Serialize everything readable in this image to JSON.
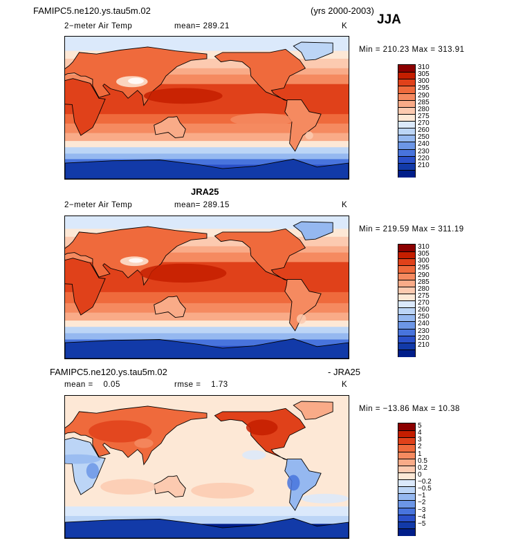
{
  "header": {
    "case_name": "FAMIPC5.ne120.ys.tau5m.02",
    "years": "(yrs 2000-2003)",
    "season": "JJA"
  },
  "panels": [
    {
      "variable": "2−meter Air Temp",
      "mean_text": "mean= 289.21",
      "units": "K",
      "minmax": "Min = 210.23 Max = 313.91"
    },
    {
      "title": "JRA25",
      "variable": "2−meter Air Temp",
      "mean_text": "mean= 289.15",
      "units": "K",
      "minmax": "Min = 219.59 Max = 311.19"
    },
    {
      "title_left": "FAMIPC5.ne120.ys.tau5m.02",
      "title_right": "- JRA25",
      "mean_text": "mean =    0.05",
      "rmse_text": "rmse =    1.73",
      "units": "K",
      "minmax": "Min = −13.86 Max =  10.38"
    }
  ],
  "chart_data": [
    {
      "type": "heatmap",
      "title": "FAMIPC5.ne120.ys.tau5m.02 2-meter Air Temp JJA",
      "units": "K",
      "mean": 289.21,
      "min": 210.23,
      "max": 313.91,
      "colorbar_levels": [
        "310",
        "305",
        "300",
        "295",
        "290",
        "285",
        "280",
        "275",
        "270",
        "260",
        "250",
        "240",
        "230",
        "220",
        "210"
      ],
      "colorbar_colors": [
        "#8b0000",
        "#c41e00",
        "#e0411a",
        "#ef6a3c",
        "#f58a60",
        "#f9ab88",
        "#fccab0",
        "#fde8d6",
        "#dbe9fb",
        "#bcd5f6",
        "#95b8f0",
        "#6c96e6",
        "#4874dd",
        "#2a50c9",
        "#123aa8",
        "#001e8a"
      ]
    },
    {
      "type": "heatmap",
      "title": "JRA25 2-meter Air Temp JJA",
      "units": "K",
      "mean": 289.15,
      "min": 219.59,
      "max": 311.19,
      "colorbar_levels": [
        "310",
        "305",
        "300",
        "295",
        "290",
        "285",
        "280",
        "275",
        "270",
        "260",
        "250",
        "240",
        "230",
        "220",
        "210"
      ],
      "colorbar_colors": [
        "#8b0000",
        "#c41e00",
        "#e0411a",
        "#ef6a3c",
        "#f58a60",
        "#f9ab88",
        "#fccab0",
        "#fde8d6",
        "#dbe9fb",
        "#bcd5f6",
        "#95b8f0",
        "#6c96e6",
        "#4874dd",
        "#2a50c9",
        "#123aa8",
        "#001e8a"
      ]
    },
    {
      "type": "heatmap",
      "title": "FAMIPC5.ne120.ys.tau5m.02 - JRA25 JJA",
      "units": "K",
      "mean": 0.05,
      "rmse": 1.73,
      "min": -13.86,
      "max": 10.38,
      "colorbar_levels": [
        "5",
        "4",
        "3",
        "2",
        "1",
        "0.5",
        "0.2",
        "0",
        "−0.2",
        "−0.5",
        "−1",
        "−2",
        "−3",
        "−4",
        "−5"
      ],
      "colorbar_colors": [
        "#8b0000",
        "#c41e00",
        "#e0411a",
        "#ef6a3c",
        "#f58a60",
        "#f9ab88",
        "#fccab0",
        "#fde8d6",
        "#dbe9fb",
        "#bcd5f6",
        "#95b8f0",
        "#6c96e6",
        "#4874dd",
        "#2a50c9",
        "#123aa8",
        "#001e8a"
      ]
    }
  ]
}
